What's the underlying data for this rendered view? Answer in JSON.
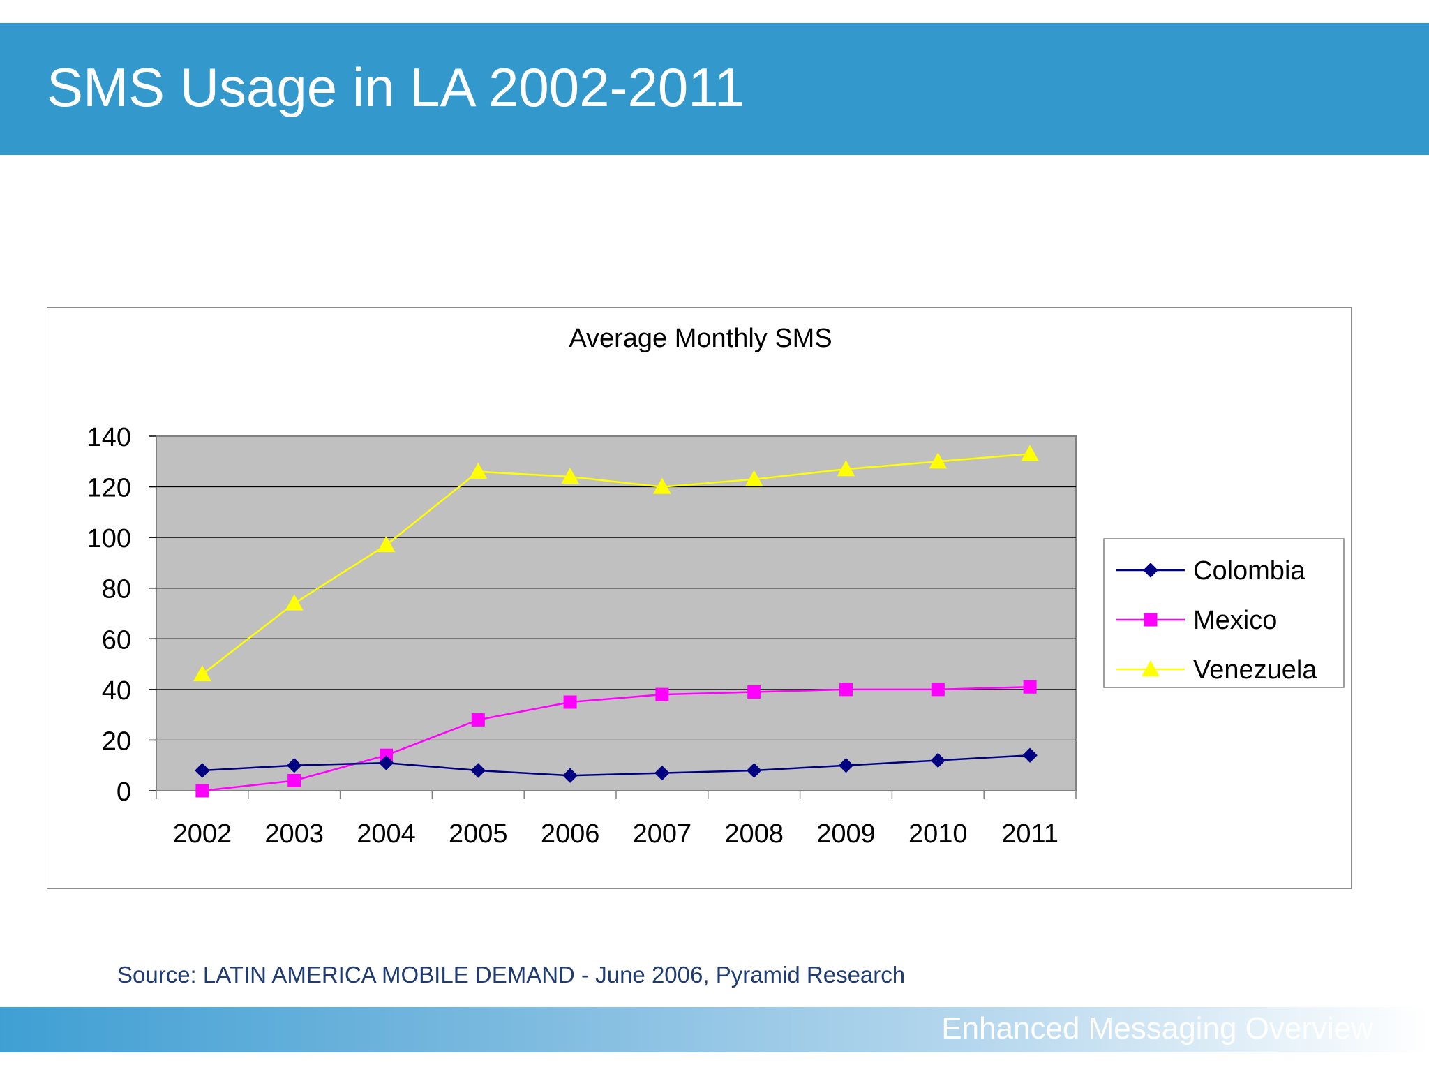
{
  "slide": {
    "title": "SMS Usage in LA 2002-2011",
    "source": "Source: LATIN AMERICA MOBILE DEMAND - June 2006, Pyramid Research",
    "footer": "Enhanced Messaging Overview"
  },
  "colors": {
    "header": "#3399cc",
    "plot_background": "#c0c0c0",
    "colombia": "#000080",
    "mexico": "#ff00ff",
    "venezuela": "#ffff00"
  },
  "chart_data": {
    "type": "line",
    "title": "Average Monthly SMS",
    "xlabel": "",
    "ylabel": "",
    "ylim": [
      0,
      140
    ],
    "yticks": [
      0,
      20,
      40,
      60,
      80,
      100,
      120,
      140
    ],
    "categories": [
      "2002",
      "2003",
      "2004",
      "2005",
      "2006",
      "2007",
      "2008",
      "2009",
      "2010",
      "2011"
    ],
    "grid": true,
    "legend": "right",
    "series": [
      {
        "name": "Colombia",
        "marker": "diamond",
        "color": "#000080",
        "values": [
          8,
          10,
          11,
          8,
          6,
          7,
          8,
          10,
          12,
          14
        ]
      },
      {
        "name": "Mexico",
        "marker": "square",
        "color": "#ff00ff",
        "values": [
          0,
          4,
          14,
          28,
          35,
          38,
          39,
          40,
          40,
          41
        ]
      },
      {
        "name": "Venezuela",
        "marker": "triangle",
        "color": "#ffff00",
        "values": [
          46,
          74,
          97,
          126,
          124,
          120,
          123,
          127,
          130,
          133
        ]
      }
    ]
  }
}
